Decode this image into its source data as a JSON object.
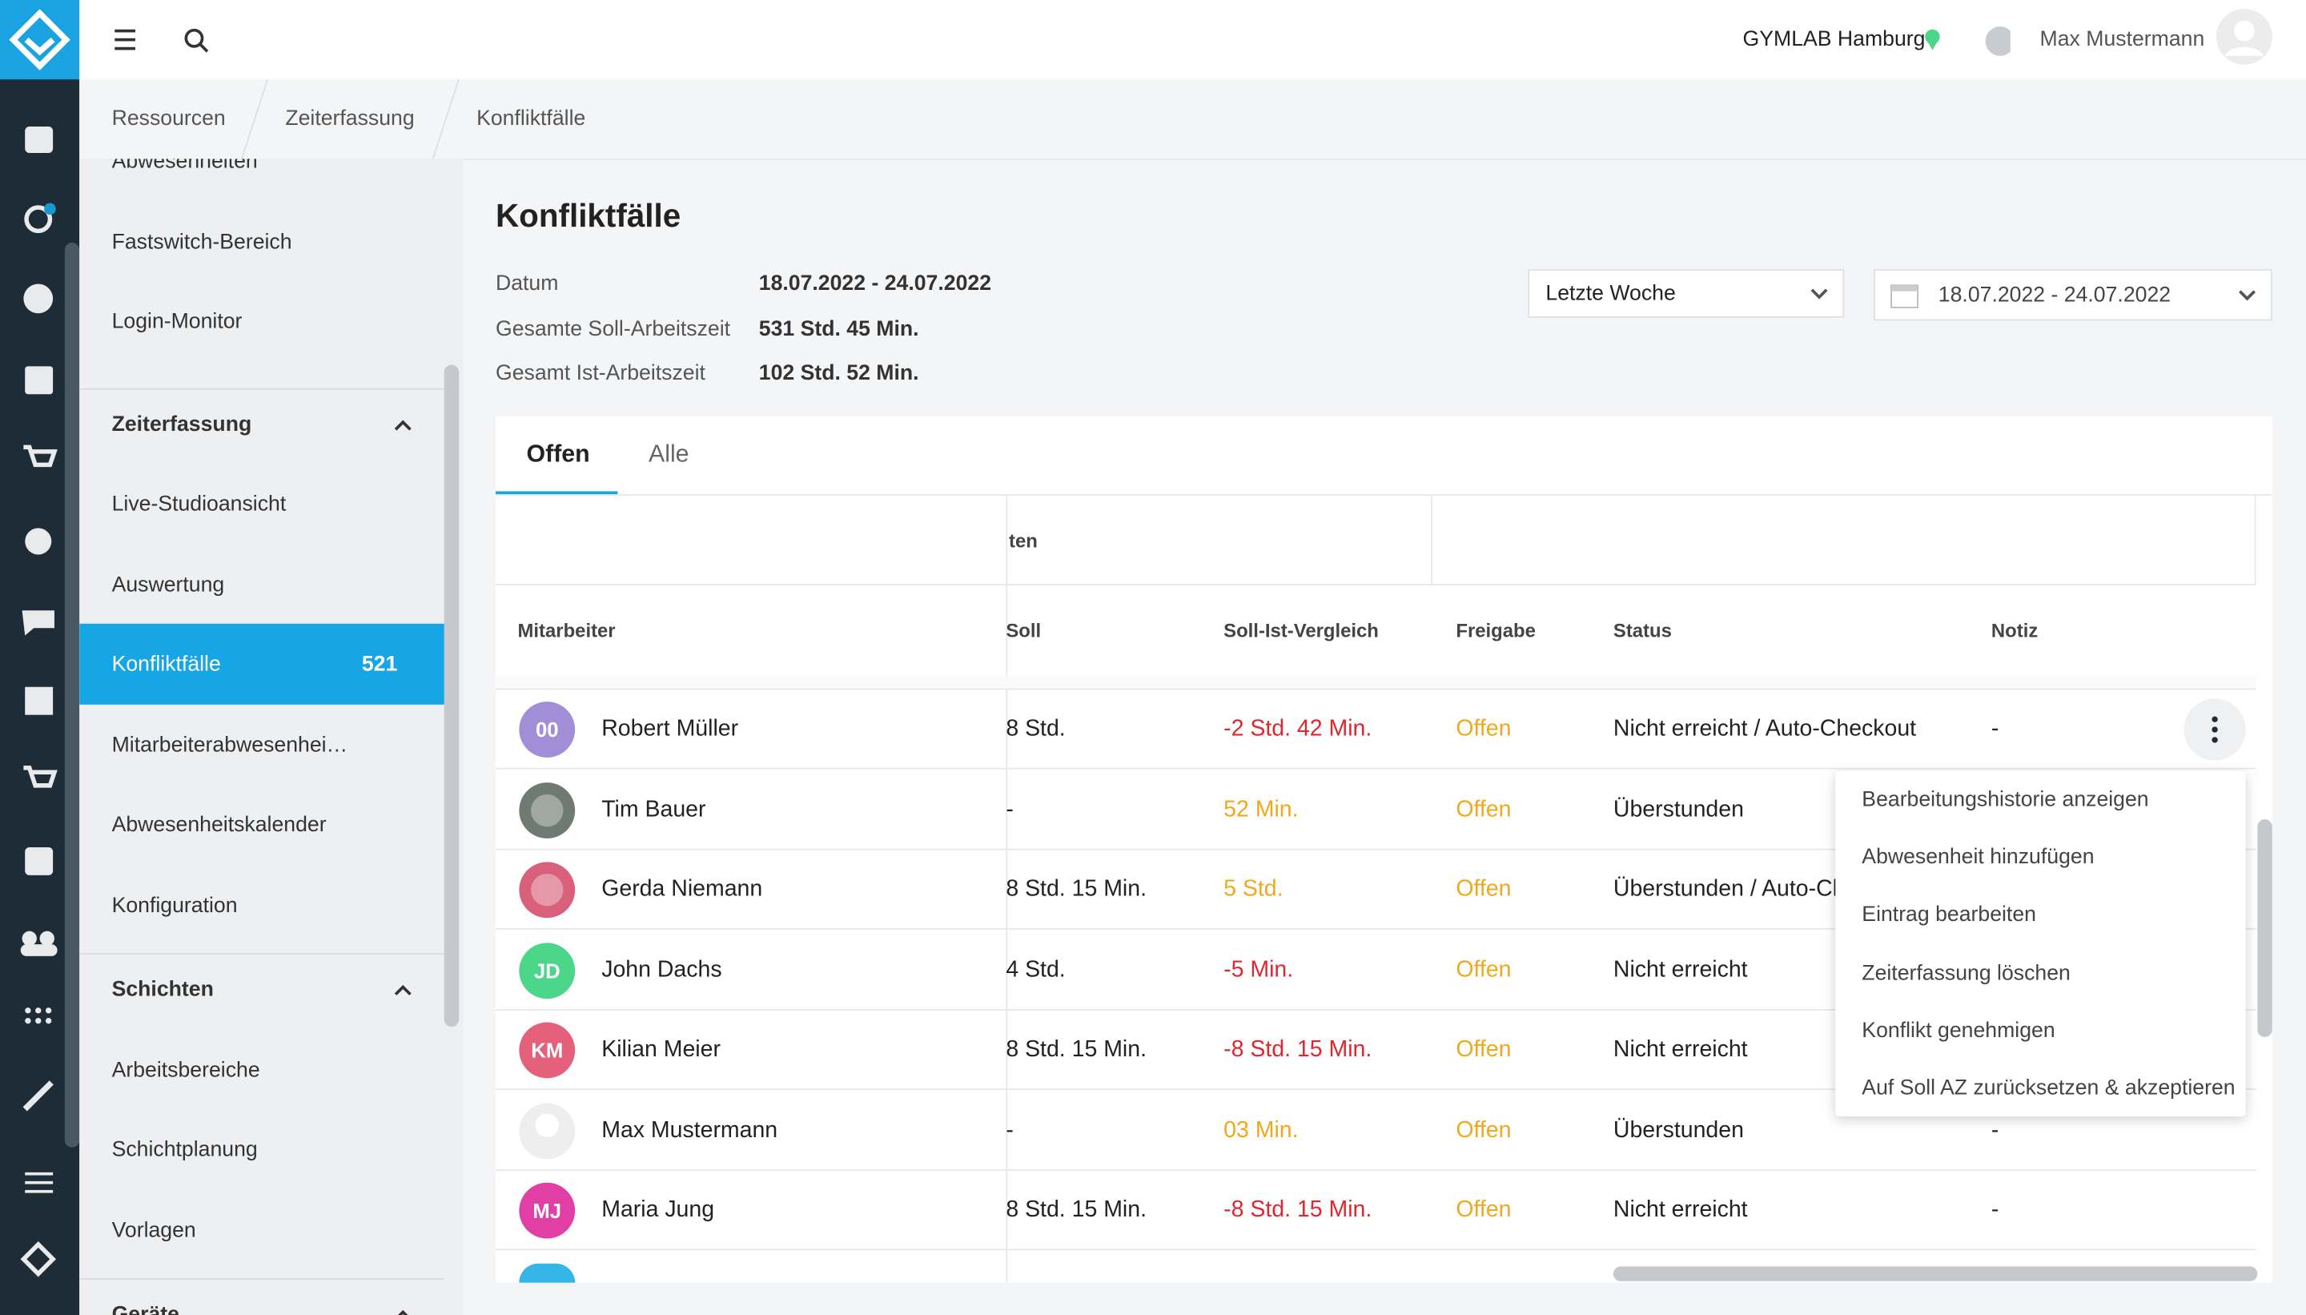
{
  "header": {
    "location": "GYMLAB Hamburg",
    "user": "Max Mustermann"
  },
  "breadcrumbs": [
    "Ressourcen",
    "Zeiterfassung",
    "Konfliktfälle"
  ],
  "sidebar": {
    "items_top": [
      "Abwesenheiten",
      "Fastswitch-Bereich",
      "Login-Monitor"
    ],
    "sections": [
      {
        "title": "Zeiterfassung",
        "items": [
          "Live-Studioansicht",
          "Auswertung",
          "Konfliktfälle",
          "Mitarbeiterabwesenhei…",
          "Abwesenheitskalender",
          "Konfiguration"
        ]
      },
      {
        "title": "Schichten",
        "items": [
          "Arbeitsbereiche",
          "Schichtplanung",
          "Vorlagen"
        ]
      },
      {
        "title": "Geräte",
        "items": []
      }
    ],
    "active_badge": "521"
  },
  "page": {
    "title": "Konfliktfälle",
    "summary": [
      {
        "label": "Datum",
        "value": "18.07.2022 - 24.07.2022"
      },
      {
        "label": "Gesamte Soll-Arbeitszeit",
        "value": "531 Std. 45 Min."
      },
      {
        "label": "Gesamt Ist-Arbeitszeit",
        "value": "102 Std. 52 Min."
      }
    ],
    "period_select": "Letzte Woche",
    "date_range": "18.07.2022 - 24.07.2022",
    "tabs": [
      "Offen",
      "Alle"
    ]
  },
  "table": {
    "group_header": "ten",
    "columns": [
      "Mitarbeiter",
      "Soll",
      "Soll-Ist-Vergleich",
      "Freigabe",
      "Status",
      "Notiz"
    ],
    "rows": [
      {
        "initials": "00",
        "avatar_color": "#a28ed6",
        "name": "Robert Müller",
        "soll": "8 Std.",
        "diff": "-2 Std. 42 Min.",
        "diff_color": "#e0262e",
        "freigabe": "Offen",
        "status": "Nicht erreicht / Auto-Checkout",
        "notiz": "-"
      },
      {
        "avatar_color": "#6f7a73",
        "name": "Tim Bauer",
        "soll": "-",
        "diff": "52 Min.",
        "diff_color": "#f2a81d",
        "freigabe": "Offen",
        "status": "Überstunden"
      },
      {
        "avatar_color": "#d9607a",
        "name": "Gerda Niemann",
        "soll": "8 Std. 15 Min.",
        "diff": "5 Std.",
        "diff_color": "#f2a81d",
        "freigabe": "Offen",
        "status": "Überstunden / Auto-Ch"
      },
      {
        "initials": "JD",
        "avatar_color": "#4bd68a",
        "name": "John Dachs",
        "soll": "4 Std.",
        "diff": "-5 Min.",
        "diff_color": "#e0262e",
        "freigabe": "Offen",
        "status": "Nicht erreicht"
      },
      {
        "initials": "KM",
        "avatar_color": "#e5607a",
        "name": "Kilian Meier",
        "soll": "8 Std. 15 Min.",
        "diff": "-8 Std. 15 Min.",
        "diff_color": "#e0262e",
        "freigabe": "Offen",
        "status": "Nicht erreicht"
      },
      {
        "avatar_color": "#eeeeee",
        "name": "Max Mustermann",
        "soll": "-",
        "diff": "03 Min.",
        "diff_color": "#f2a81d",
        "freigabe": "Offen",
        "status": "Überstunden",
        "notiz": "-"
      },
      {
        "initials": "MJ",
        "avatar_color": "#e23fa6",
        "name": "Maria Jung",
        "soll": "8 Std. 15 Min.",
        "diff": "-8 Std. 15 Min.",
        "diff_color": "#e0262e",
        "freigabe": "Offen",
        "status": "Nicht erreicht",
        "notiz": "-"
      }
    ]
  },
  "context_menu": [
    "Bearbeitungshistorie anzeigen",
    "Abwesenheit hinzufügen",
    "Eintrag bearbeiten",
    "Zeiterfassung löschen",
    "Konflikt genehmigen",
    "Auf Soll AZ zurücksetzen & akzeptieren"
  ]
}
